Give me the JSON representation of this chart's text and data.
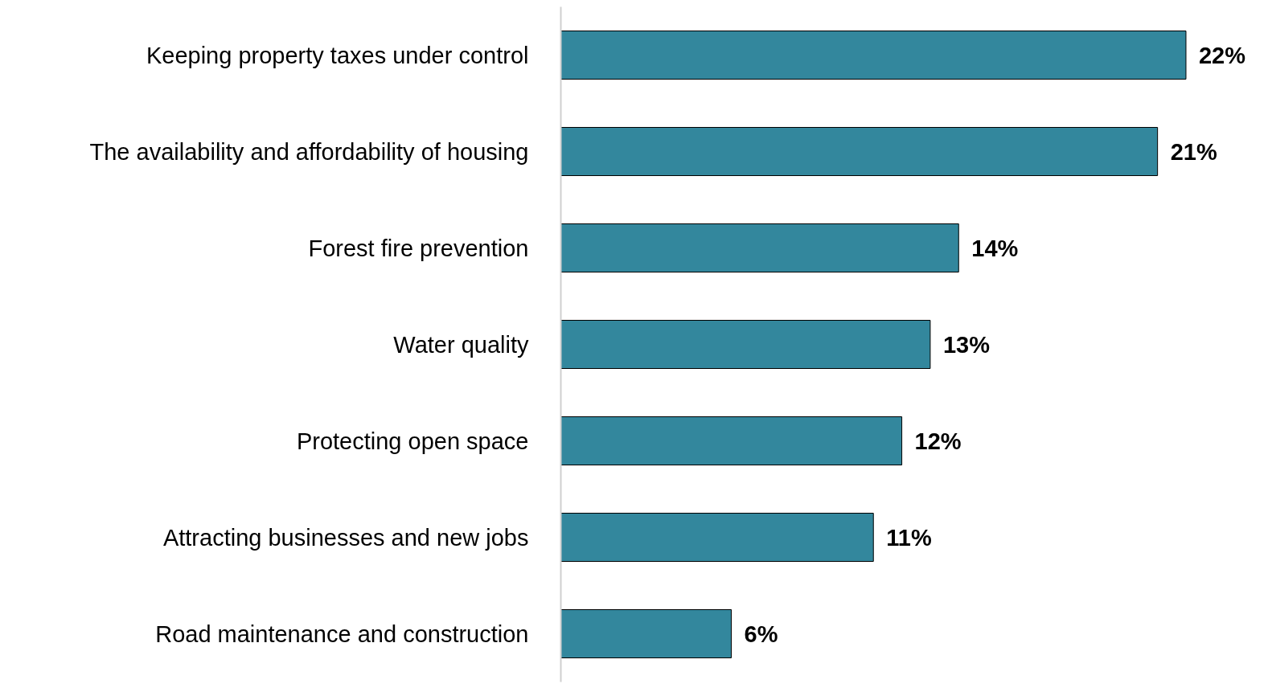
{
  "chart_data": {
    "type": "bar",
    "orientation": "horizontal",
    "categories": [
      "Keeping property taxes under control",
      "The availability and affordability of housing",
      "Forest fire prevention",
      "Water quality",
      "Protecting open space",
      "Attracting businesses and new jobs",
      "Road maintenance and construction"
    ],
    "values": [
      22,
      21,
      14,
      13,
      12,
      11,
      6
    ],
    "value_labels": [
      "22%",
      "21%",
      "14%",
      "13%",
      "12%",
      "11%",
      "6%"
    ],
    "color": "#33879d",
    "grid": false,
    "tick_labels": "y"
  }
}
